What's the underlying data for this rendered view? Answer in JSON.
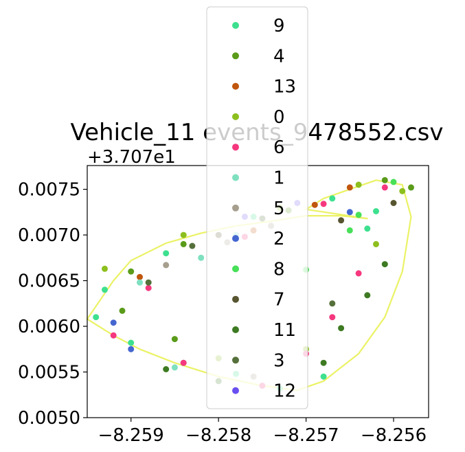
{
  "chart_data": {
    "type": "scatter",
    "title": "Vehicle_11 events_9478552.csv",
    "xlabel": "",
    "ylabel": "",
    "y_offset_label": "+3.707e1",
    "xlim": [
      -8.2595,
      -8.2556
    ],
    "ylim": [
      0.005,
      0.00776
    ],
    "x_ticks": [
      -8.259,
      -8.258,
      -8.257,
      -8.256
    ],
    "x_tick_labels": [
      "−8.259",
      "−8.258",
      "−8.257",
      "−8.256"
    ],
    "y_ticks": [
      0.005,
      0.0055,
      0.006,
      0.0065,
      0.007,
      0.0075
    ],
    "y_tick_labels": [
      "0.0050",
      "0.0055",
      "0.0060",
      "0.0065",
      "0.0070",
      "0.0075"
    ],
    "grid": false,
    "legend_position": "upper center",
    "track_color": "#e8f04a",
    "route": {
      "x": [
        -8.2563,
        -8.2566,
        -8.257,
        -8.2574,
        -8.2578,
        -8.2582,
        -8.2586,
        -8.259,
        -8.2592,
        -8.2595,
        -8.2592,
        -8.2589,
        -8.2585,
        -8.258,
        -8.2575,
        -8.2571,
        -8.2568,
        -8.2564,
        -8.2561,
        -8.2559,
        -8.2558,
        -8.2559,
        -8.2562,
        -8.2565,
        -8.2568,
        -8.257
      ],
      "y": [
        0.00718,
        0.00721,
        0.00721,
        0.00715,
        0.0071,
        0.00702,
        0.00691,
        0.00672,
        0.0065,
        0.00608,
        0.0059,
        0.00575,
        0.0056,
        0.00545,
        0.00535,
        0.0053,
        0.0054,
        0.0057,
        0.0061,
        0.0066,
        0.0072,
        0.00755,
        0.0076,
        0.0075,
        0.0074,
        0.00728
      ]
    },
    "series": [
      {
        "name": "9",
        "color": "#3de08e",
        "x": [
          -8.2563,
          -8.2562,
          -8.2567,
          -8.2576,
          -8.2586,
          -8.2593,
          -8.2594,
          -8.259,
          -8.2584,
          -8.2578,
          -8.2573,
          -8.2568
        ],
        "y": [
          0.00707,
          0.00726,
          0.0074,
          0.0072,
          0.0068,
          0.0064,
          0.0061,
          0.00582,
          0.0056,
          0.00548,
          0.00532,
          0.00545
        ]
      },
      {
        "name": "4",
        "color": "#5a9b1a",
        "x": [
          -8.2561,
          -8.2558,
          -8.2572,
          -8.2584,
          -8.259,
          -8.2591,
          -8.2585
        ],
        "y": [
          0.0076,
          0.00752,
          0.00727,
          0.0069,
          0.0066,
          0.00617,
          0.00586
        ]
      },
      {
        "name": "13",
        "color": "#c0560e",
        "x": [
          -8.2589,
          -8.2576,
          -8.2569,
          -8.2565
        ],
        "y": [
          0.00654,
          0.00705,
          0.00733,
          0.00752
        ]
      },
      {
        "name": "0",
        "color": "#8dbf1e",
        "x": [
          -8.2593,
          -8.2584,
          -8.2573,
          -8.2564,
          -8.2559,
          -8.2562,
          -8.257,
          -8.258
        ],
        "y": [
          0.00663,
          0.007,
          0.0073,
          0.00755,
          0.00748,
          0.0069,
          0.00575,
          0.00565
        ]
      },
      {
        "name": "6",
        "color": "#f5377e",
        "x": [
          -8.2588,
          -8.2577,
          -8.2568,
          -8.2561,
          -8.2564,
          -8.2567,
          -8.257,
          -8.2575,
          -8.2584,
          -8.2592
        ],
        "y": [
          0.00642,
          0.00698,
          0.00734,
          0.00752,
          0.00658,
          0.0061,
          0.0057,
          0.00535,
          0.0056,
          0.0059
        ]
      },
      {
        "name": "1",
        "color": "#7fe0c0",
        "x": [
          -8.2589,
          -8.2582,
          -8.2578,
          -8.2585
        ],
        "y": [
          0.00648,
          0.00675,
          0.007,
          0.00555
        ]
      },
      {
        "name": "5",
        "color": "#a69f8e",
        "x": [
          -8.2574,
          -8.2579,
          -8.2586,
          -8.2576
        ],
        "y": [
          0.0071,
          0.00692,
          0.00667,
          0.00545
        ]
      },
      {
        "name": "2",
        "color": "#4466d0",
        "x": [
          -8.2592,
          -8.259,
          -8.2565
        ],
        "y": [
          0.00604,
          0.00575,
          0.00725
        ]
      },
      {
        "name": "8",
        "color": "#47e058",
        "x": [
          -8.256,
          -8.2565,
          -8.257,
          -8.2564
        ],
        "y": [
          0.00758,
          0.00705,
          0.00662,
          0.00722
        ]
      },
      {
        "name": "7",
        "color": "#575530",
        "x": [
          -8.258,
          -8.2566,
          -8.256
        ],
        "y": [
          0.007,
          0.00716,
          0.00735
        ]
      },
      {
        "name": "11",
        "color": "#3d7a22",
        "x": [
          -8.2566,
          -8.2563,
          -8.2561,
          -8.2568,
          -8.2586,
          -8.258
        ],
        "y": [
          0.00598,
          0.00634,
          0.00668,
          0.0056,
          0.00553,
          0.0054
        ]
      },
      {
        "name": "3",
        "color": "#55703a",
        "x": [
          -8.2588,
          -8.2583,
          -8.2575,
          -8.2567
        ],
        "y": [
          0.00648,
          0.00688,
          0.00718,
          0.00625
        ]
      },
      {
        "name": "12",
        "color": "#6a4ff0",
        "x": [
          -8.2577,
          -8.2571
        ],
        "y": [
          0.0072,
          0.00735
        ]
      }
    ]
  }
}
